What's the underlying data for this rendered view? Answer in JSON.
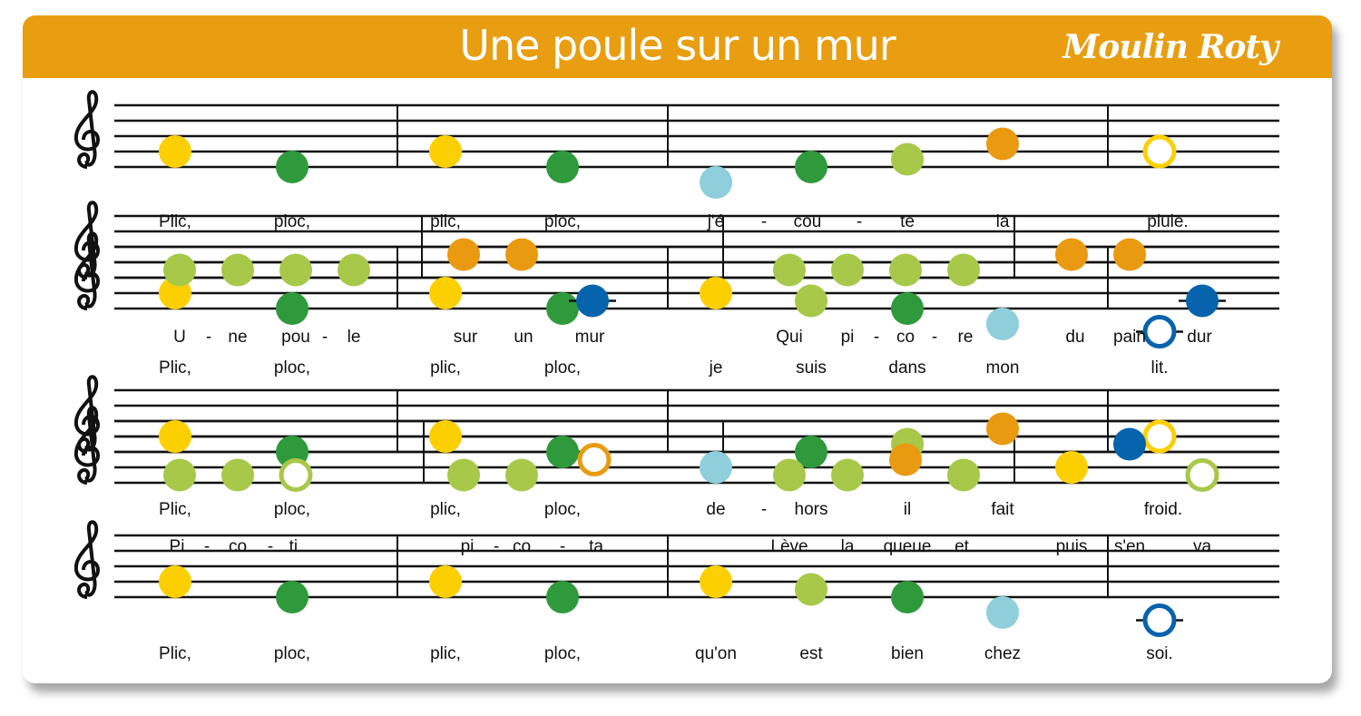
{
  "header": {
    "title": "Une poule sur un mur",
    "logo": "Moulin Roty"
  },
  "palette": {
    "header": "#e89e10",
    "yellow": "#fcd000",
    "dark_green": "#2f9a3c",
    "light_green": "#a8c84a",
    "light_blue": "#8ecfdb",
    "orange": "#e99a10",
    "dark_blue": "#0663ac"
  },
  "plic_ploc": {
    "staves": [
      {
        "notes": [
          {
            "step": 2,
            "color": "yellow"
          },
          {
            "step": 0,
            "color": "dark_green"
          },
          {
            "step": 2,
            "color": "yellow"
          },
          {
            "step": 0,
            "color": "dark_green"
          },
          {
            "step": -2,
            "color": "light_blue"
          },
          {
            "step": 0,
            "color": "dark_green"
          },
          {
            "step": 1,
            "color": "light_green"
          },
          {
            "step": 3,
            "color": "orange"
          },
          {
            "step": 2,
            "color": "yellow",
            "hollow": true
          }
        ],
        "lyrics": [
          "Plic,",
          "ploc,",
          "plic,",
          "ploc,",
          "j'é",
          "-",
          "cou",
          "-",
          "te",
          "la",
          "pluie."
        ]
      },
      {
        "notes": [
          {
            "step": 2,
            "color": "yellow"
          },
          {
            "step": 0,
            "color": "dark_green"
          },
          {
            "step": 2,
            "color": "yellow"
          },
          {
            "step": 0,
            "color": "dark_green"
          },
          {
            "step": 2,
            "color": "yellow"
          },
          {
            "step": 1,
            "color": "light_green"
          },
          {
            "step": 0,
            "color": "dark_green"
          },
          {
            "step": -2,
            "color": "light_blue"
          },
          {
            "step": -3,
            "color": "dark_blue",
            "hollow": true
          }
        ],
        "lyrics": [
          "Plic,",
          "ploc,",
          "plic,",
          "ploc,",
          "je",
          "suis",
          "dans",
          "mon",
          "lit."
        ]
      },
      {
        "notes": [
          {
            "step": 2,
            "color": "yellow"
          },
          {
            "step": 0,
            "color": "dark_green"
          },
          {
            "step": 2,
            "color": "yellow"
          },
          {
            "step": 0,
            "color": "dark_green"
          },
          {
            "step": -2,
            "color": "light_blue"
          },
          {
            "step": 0,
            "color": "dark_green"
          },
          {
            "step": 1,
            "color": "light_green"
          },
          {
            "step": 3,
            "color": "orange"
          },
          {
            "step": 2,
            "color": "yellow",
            "hollow": true
          }
        ],
        "lyrics": [
          "Plic,",
          "ploc,",
          "plic,",
          "ploc,",
          "de",
          "-",
          "hors",
          "il",
          "fait",
          "froid."
        ]
      },
      {
        "notes": [
          {
            "step": 2,
            "color": "yellow"
          },
          {
            "step": 0,
            "color": "dark_green"
          },
          {
            "step": 2,
            "color": "yellow"
          },
          {
            "step": 0,
            "color": "dark_green"
          },
          {
            "step": 2,
            "color": "yellow"
          },
          {
            "step": 1,
            "color": "light_green"
          },
          {
            "step": 0,
            "color": "dark_green"
          },
          {
            "step": -2,
            "color": "light_blue"
          },
          {
            "step": -3,
            "color": "dark_blue",
            "hollow": true
          }
        ],
        "lyrics": [
          "Plic,",
          "ploc,",
          "plic,",
          "ploc,",
          "qu'on",
          "est",
          "bien",
          "chez",
          "soi."
        ]
      }
    ]
  },
  "une_poule": {
    "staves": [
      {
        "notes": [
          {
            "step": 1,
            "color": "light_green"
          },
          {
            "step": 1,
            "color": "light_green"
          },
          {
            "step": 1,
            "color": "light_green"
          },
          {
            "step": 1,
            "color": "light_green"
          },
          {
            "step": 3,
            "color": "orange"
          },
          {
            "step": 3,
            "color": "orange"
          },
          {
            "step": -3,
            "color": "dark_blue"
          },
          {
            "step": 1,
            "color": "light_green"
          },
          {
            "step": 1,
            "color": "light_green"
          },
          {
            "step": 1,
            "color": "light_green"
          },
          {
            "step": 1,
            "color": "light_green"
          },
          {
            "step": 3,
            "color": "orange"
          },
          {
            "step": 3,
            "color": "orange"
          },
          {
            "step": -3,
            "color": "dark_blue"
          }
        ],
        "lyrics": [
          "U",
          "-",
          "ne",
          "pou",
          "-",
          "le",
          "sur",
          "un",
          "mur",
          "Qui",
          "pi",
          "-",
          "co",
          "-",
          "re",
          "du",
          "pain",
          "dur"
        ]
      },
      {
        "notes": [
          {
            "step": 1,
            "color": "light_green"
          },
          {
            "step": 1,
            "color": "light_green"
          },
          {
            "step": 1,
            "color": "light_green",
            "hollow": true
          },
          {
            "step": 1,
            "color": "light_green"
          },
          {
            "step": 1,
            "color": "light_green"
          },
          {
            "step": 3,
            "color": "orange",
            "hollow": true
          },
          {
            "step": 1,
            "color": "light_green"
          },
          {
            "step": 1,
            "color": "light_green"
          },
          {
            "step": 3,
            "color": "orange"
          },
          {
            "step": 1,
            "color": "light_green"
          },
          {
            "step": 2,
            "color": "yellow"
          },
          {
            "step": 5,
            "color": "dark_blue"
          },
          {
            "step": 1,
            "color": "light_green",
            "hollow": true
          }
        ],
        "lyrics": [
          "Pi",
          "-",
          "co",
          "-",
          "ti.",
          "pi",
          "-",
          "co",
          "-",
          "ta",
          "Lève",
          "la",
          "queue",
          "et",
          "puis",
          "s'en",
          "va"
        ]
      }
    ]
  }
}
